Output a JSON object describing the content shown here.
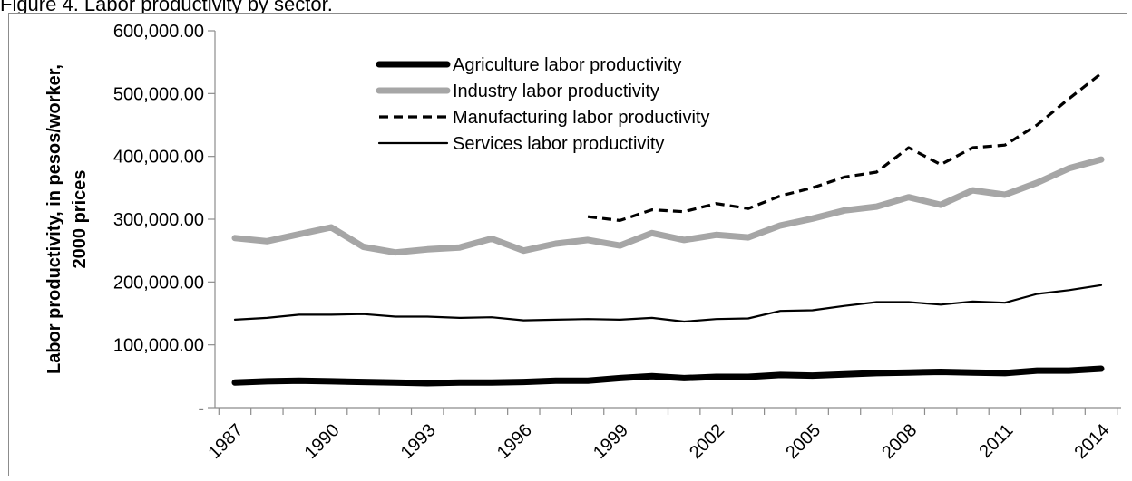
{
  "caption": "Figure 4. Labor productivity by sector.",
  "chart_data": {
    "type": "line",
    "title": "",
    "ylabel_lines": [
      "Labor productivity, in pesos/worker,",
      "2000 prices"
    ],
    "xlabel": "",
    "x": [
      1987,
      1988,
      1989,
      1990,
      1991,
      1992,
      1993,
      1994,
      1995,
      1996,
      1997,
      1998,
      1999,
      2000,
      2001,
      2002,
      2003,
      2004,
      2005,
      2006,
      2007,
      2008,
      2009,
      2010,
      2011,
      2012,
      2013,
      2014
    ],
    "x_tick_labels": [
      "1987",
      "1990",
      "1993",
      "1996",
      "1999",
      "2002",
      "2005",
      "2008",
      "2011",
      "2014"
    ],
    "ylim": [
      0,
      600000
    ],
    "y_tick_labels": [
      "-",
      "100,000.00",
      "200,000.00",
      "300,000.00",
      "400,000.00",
      "500,000.00",
      "600,000.00"
    ],
    "grid": false,
    "legend_position": "top-center",
    "series": [
      {
        "name": "Agriculture labor productivity",
        "color": "#000000",
        "style": "thick-solid",
        "values": [
          40000,
          42000,
          43000,
          42000,
          41000,
          40000,
          39000,
          40000,
          40000,
          41000,
          43000,
          43000,
          47000,
          50000,
          47000,
          49000,
          49000,
          52000,
          51000,
          53000,
          55000,
          56000,
          57000,
          56000,
          55000,
          59000,
          59000,
          62000
        ]
      },
      {
        "name": "Industry labor productivity",
        "color": "#a6a6a6",
        "style": "thick-solid",
        "values": [
          270000,
          265000,
          276000,
          287000,
          256000,
          247000,
          252000,
          255000,
          269000,
          250000,
          261000,
          267000,
          258000,
          278000,
          267000,
          275000,
          271000,
          290000,
          301000,
          314000,
          320000,
          335000,
          323000,
          346000,
          339000,
          358000,
          381000,
          395000
        ]
      },
      {
        "name": "Manufacturing labor productivity",
        "color": "#000000",
        "style": "dashed",
        "values": [
          null,
          null,
          null,
          null,
          null,
          null,
          null,
          null,
          null,
          null,
          null,
          304000,
          298000,
          315000,
          312000,
          325000,
          317000,
          337000,
          350000,
          367000,
          375000,
          414000,
          387000,
          414000,
          418000,
          450000,
          492000,
          532000
        ]
      },
      {
        "name": "Services labor productivity",
        "color": "#000000",
        "style": "thin-solid",
        "values": [
          140000,
          143000,
          148000,
          148000,
          149000,
          145000,
          145000,
          143000,
          144000,
          139000,
          140000,
          141000,
          140000,
          143000,
          137000,
          141000,
          142000,
          154000,
          155000,
          162000,
          168000,
          168000,
          164000,
          169000,
          167000,
          181000,
          187000,
          195000
        ]
      }
    ]
  }
}
